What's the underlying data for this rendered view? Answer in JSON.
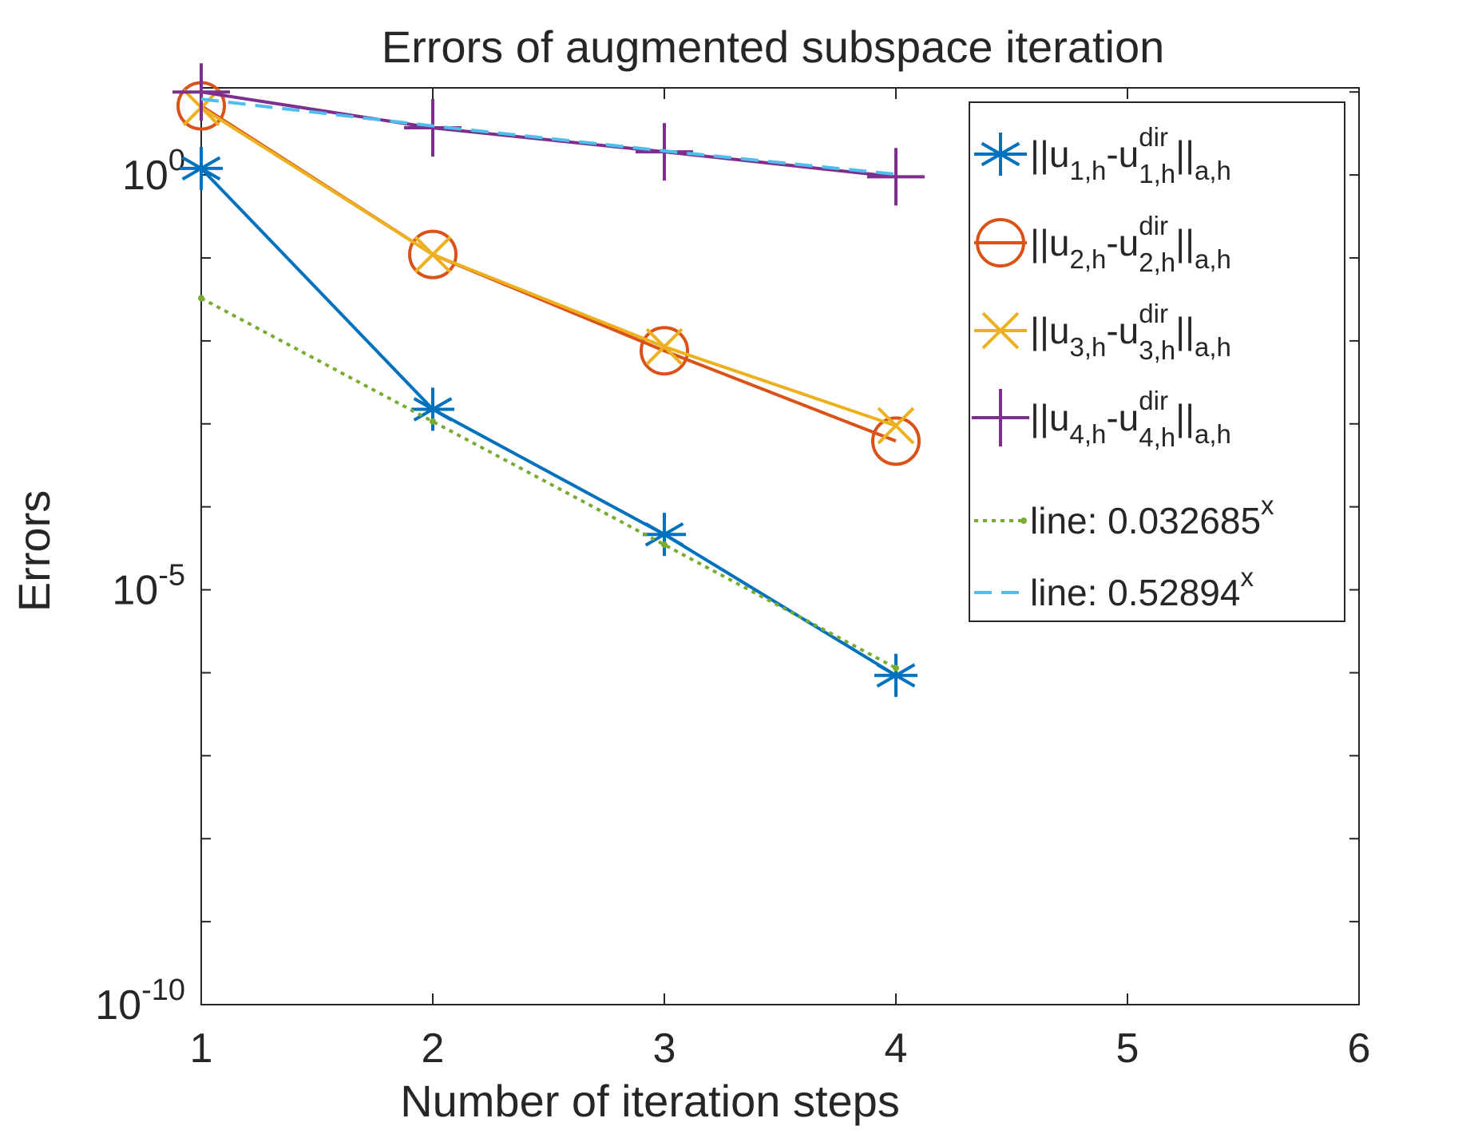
{
  "chart_data": {
    "type": "line",
    "title": "Errors of augmented subspace iteration",
    "xlabel": "Number of iteration steps",
    "ylabel": "Errors",
    "xlim": [
      1,
      6
    ],
    "ylim_log10": [
      -10,
      1.05
    ],
    "y_scale": "log",
    "x_ticks": [
      "1",
      "2",
      "3",
      "4",
      "5",
      "6"
    ],
    "y_ticks": [
      {
        "base": "10",
        "exp": "0",
        "value": 0
      },
      {
        "base": "10",
        "exp": "-5",
        "value": -5
      },
      {
        "base": "10",
        "exp": "-10",
        "value": -10
      }
    ],
    "grid": false,
    "legend_position": "top-right",
    "series": [
      {
        "id": "s1",
        "label": {
          "pre": "||u",
          "sub1": "1,h",
          "mid": "-u",
          "sup2": "dir",
          "sub2": "1,h",
          "post": "||",
          "sub3": "a,h"
        },
        "color": "#0072BD",
        "marker": "asterisk",
        "style": "solid",
        "x": [
          1,
          2,
          3,
          4
        ],
        "y": [
          1.2,
          0.0015,
          4.65e-05,
          9.3e-07
        ]
      },
      {
        "id": "s2",
        "label": {
          "pre": "||u",
          "sub1": "2,h",
          "mid": "-u",
          "sup2": "dir",
          "sub2": "2,h",
          "post": "||",
          "sub3": "a,h"
        },
        "color": "#D95319",
        "marker": "circle",
        "style": "solid",
        "x": [
          1,
          2,
          3,
          4
        ],
        "y": [
          6.8,
          0.11,
          0.0076,
          0.00062
        ]
      },
      {
        "id": "s3",
        "label": {
          "pre": "||u",
          "sub1": "3,h",
          "mid": "-u",
          "sup2": "dir",
          "sub2": "3,h",
          "post": "||",
          "sub3": "a,h"
        },
        "color": "#EDB120",
        "marker": "x",
        "style": "solid",
        "x": [
          1,
          2,
          3,
          4
        ],
        "y": [
          6.5,
          0.11,
          0.0085,
          0.00095
        ]
      },
      {
        "id": "s4",
        "label": {
          "pre": "||u",
          "sub1": "4,h",
          "mid": "-u",
          "sup2": "dir",
          "sub2": "4,h",
          "post": "||",
          "sub3": "a,h"
        },
        "color": "#7E2F8E",
        "marker": "plus",
        "style": "solid",
        "x": [
          1,
          2,
          3,
          4
        ],
        "y": [
          10.0,
          3.7,
          1.9,
          0.95
        ]
      },
      {
        "id": "s5",
        "label": {
          "pre": "line: 0.032685",
          "sup1": "x"
        },
        "color": "#77AC30",
        "marker": "dot",
        "style": "dotted",
        "x": [
          1,
          2,
          3,
          4
        ],
        "y": [
          0.032685,
          0.0010683,
          3.49e-05,
          1.14e-06
        ]
      },
      {
        "id": "s6",
        "label": {
          "pre": "line: 0.52894",
          "sup1": "x"
        },
        "color": "#4DBEEE",
        "marker": "none",
        "style": "dashed",
        "x": [
          1,
          2,
          3,
          4
        ],
        "y": [
          8.2,
          3.9,
          1.95,
          1.02
        ]
      }
    ]
  }
}
